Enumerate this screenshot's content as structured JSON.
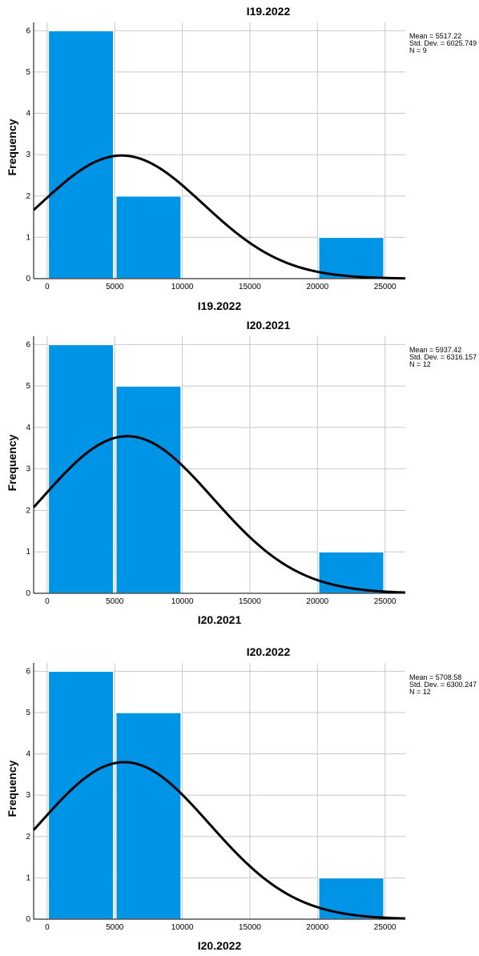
{
  "chart_data": [
    {
      "type": "bar",
      "title": "I19.2022",
      "xlabel": "I19.2022",
      "ylabel": "Frequency",
      "bins": [
        {
          "from": 0,
          "to": 5000,
          "value": 6
        },
        {
          "from": 5000,
          "to": 10000,
          "value": 2
        },
        {
          "from": 20000,
          "to": 25000,
          "value": 1
        }
      ],
      "x_ticks": [
        "0",
        "5000",
        "10000",
        "15000",
        "20000",
        "25000"
      ],
      "y_ticks": [
        "0",
        "1",
        "2",
        "3",
        "4",
        "5",
        "6"
      ],
      "xlim": [
        -1000,
        26500
      ],
      "ylim": [
        0,
        6.2
      ],
      "normal_curve": {
        "mean": 5517.22,
        "sd": 6025.749,
        "n": 9,
        "bin_width": 5000
      },
      "stats": [
        "Mean = 5517.22",
        "Std. Dev. = 6025.749",
        "N = 9"
      ],
      "grid": true
    },
    {
      "type": "bar",
      "title": "I20.2021",
      "xlabel": "I20.2021",
      "ylabel": "Frequency",
      "bins": [
        {
          "from": 0,
          "to": 5000,
          "value": 6
        },
        {
          "from": 5000,
          "to": 10000,
          "value": 5
        },
        {
          "from": 20000,
          "to": 25000,
          "value": 1
        }
      ],
      "x_ticks": [
        "0",
        "5000",
        "10000",
        "15000",
        "20000",
        "25000"
      ],
      "y_ticks": [
        "0",
        "1",
        "2",
        "3",
        "4",
        "5",
        "6"
      ],
      "xlim": [
        -1000,
        26500
      ],
      "ylim": [
        0,
        6.2
      ],
      "normal_curve": {
        "mean": 5937.42,
        "sd": 6316.157,
        "n": 12,
        "bin_width": 5000
      },
      "stats": [
        "Mean = 5937.42",
        "Std. Dev. = 6316.157",
        "N = 12"
      ],
      "grid": true
    },
    {
      "type": "bar",
      "title": "I20.2022",
      "xlabel": "I20.2022",
      "ylabel": "Frequency",
      "bins": [
        {
          "from": 0,
          "to": 5000,
          "value": 6
        },
        {
          "from": 5000,
          "to": 10000,
          "value": 5
        },
        {
          "from": 20000,
          "to": 25000,
          "value": 1
        }
      ],
      "x_ticks": [
        "0",
        "5000",
        "10000",
        "15000",
        "20000",
        "25000"
      ],
      "y_ticks": [
        "0",
        "1",
        "2",
        "3",
        "4",
        "5",
        "6"
      ],
      "xlim": [
        -1000,
        26500
      ],
      "ylim": [
        0,
        6.2
      ],
      "normal_curve": {
        "mean": 5708.58,
        "sd": 6300.247,
        "n": 12,
        "bin_width": 5000
      },
      "stats": [
        "Mean = 5708.58",
        "Std. Dev. = 6300.247",
        "N = 12"
      ],
      "grid": true
    }
  ],
  "colors": {
    "bar": "#0094e6",
    "curve": "#000000",
    "grid": "#c8c8c8"
  }
}
